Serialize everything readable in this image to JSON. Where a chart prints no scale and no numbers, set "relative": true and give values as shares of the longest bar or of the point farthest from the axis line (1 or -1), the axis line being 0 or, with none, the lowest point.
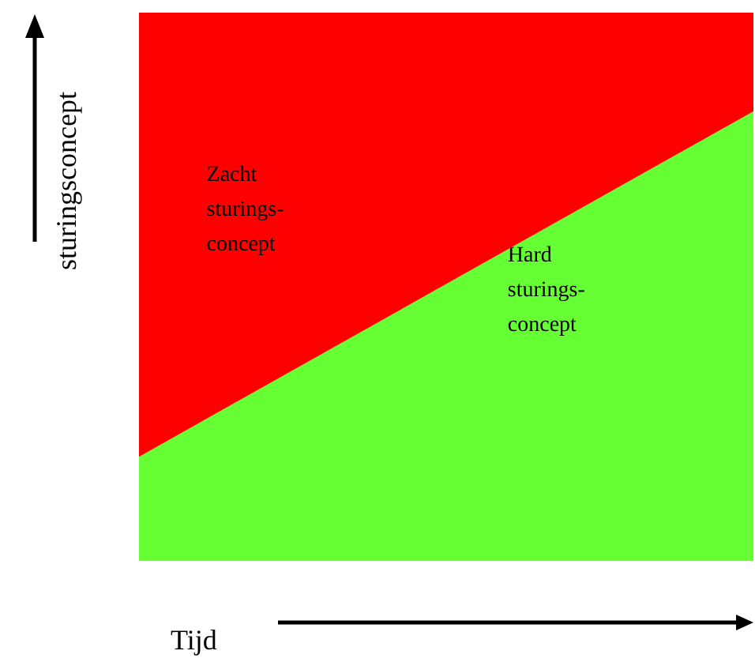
{
  "chart_data": {
    "type": "area",
    "stacked": true,
    "relative": true,
    "xlabel": "Tijd",
    "ylabel": "sturingsconcept",
    "categories": [
      null,
      null
    ],
    "series": [
      {
        "name": "Hard sturings- concept",
        "color": "#66ff33",
        "values": [
          0.19,
          0.82
        ]
      },
      {
        "name": "Zacht sturings- concept",
        "color": "#ff0000",
        "values": [
          0.81,
          0.18
        ]
      }
    ]
  }
}
